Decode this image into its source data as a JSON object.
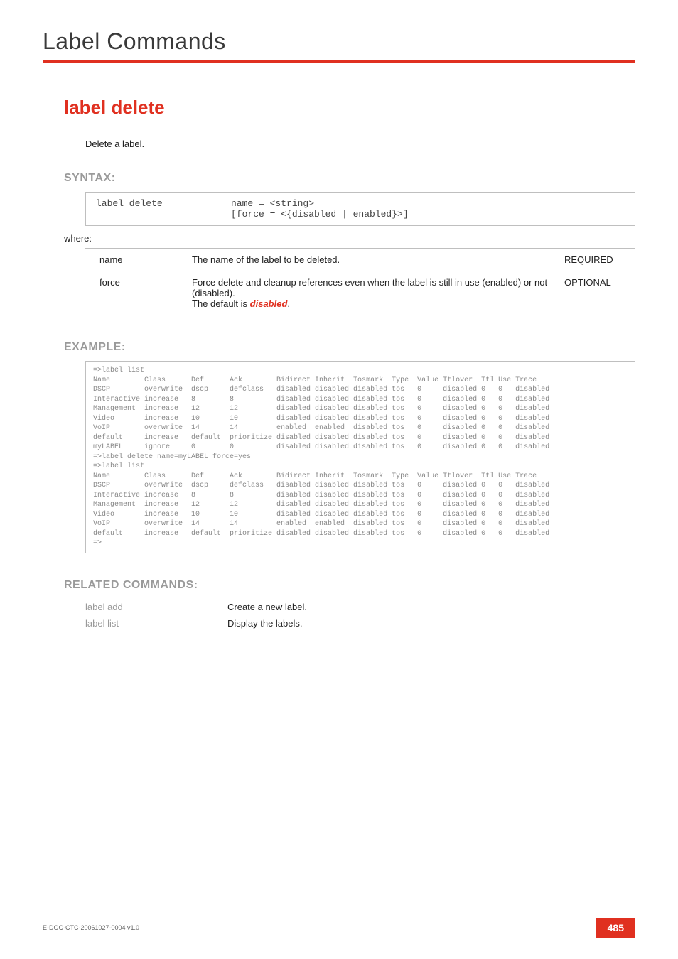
{
  "chapter_title": "Label Commands",
  "command_title": "label delete",
  "description": "Delete a label.",
  "sections": {
    "syntax": "SYNTAX:",
    "example": "EXAMPLE:",
    "related": "RELATED COMMANDS:"
  },
  "syntax": {
    "command": "label delete",
    "args": "name = <string>\n[force = <{disabled | enabled}>]"
  },
  "where": "where:",
  "params": [
    {
      "name": "name",
      "desc": "The name of the label to be deleted.",
      "req": "REQUIRED"
    },
    {
      "name": "force",
      "desc_pre": "Force delete and cleanup references even when the label is still in use (enabled) or not (disabled).\nThe default is ",
      "default": "disabled",
      "desc_post": ".",
      "req": "OPTIONAL"
    }
  ],
  "example_text": "=>label list\nName        Class      Def      Ack        Bidirect Inherit  Tosmark  Type  Value Ttlover  Ttl Use Trace\nDSCP        overwrite  dscp     defclass   disabled disabled disabled tos   0     disabled 0   0   disabled\nInteractive increase   8        8          disabled disabled disabled tos   0     disabled 0   0   disabled\nManagement  increase   12       12         disabled disabled disabled tos   0     disabled 0   0   disabled\nVideo       increase   10       10         disabled disabled disabled tos   0     disabled 0   0   disabled\nVoIP        overwrite  14       14         enabled  enabled  disabled tos   0     disabled 0   0   disabled\ndefault     increase   default  prioritize disabled disabled disabled tos   0     disabled 0   0   disabled\nmyLABEL     ignore     0        0          disabled disabled disabled tos   0     disabled 0   0   disabled\n=>label delete name=myLABEL force=yes\n=>label list\nName        Class      Def      Ack        Bidirect Inherit  Tosmark  Type  Value Ttlover  Ttl Use Trace\nDSCP        overwrite  dscp     defclass   disabled disabled disabled tos   0     disabled 0   0   disabled\nInteractive increase   8        8          disabled disabled disabled tos   0     disabled 0   0   disabled\nManagement  increase   12       12         disabled disabled disabled tos   0     disabled 0   0   disabled\nVideo       increase   10       10         disabled disabled disabled tos   0     disabled 0   0   disabled\nVoIP        overwrite  14       14         enabled  enabled  disabled tos   0     disabled 0   0   disabled\ndefault     increase   default  prioritize disabled disabled disabled tos   0     disabled 0   0   disabled\n=>",
  "related": [
    {
      "cmd": "label add",
      "desc": "Create a new label."
    },
    {
      "cmd": "label list",
      "desc": "Display the labels."
    }
  ],
  "footer": {
    "docid": "E-DOC-CTC-20061027-0004 v1.0",
    "page": "485"
  },
  "colors": {
    "accent": "#e03020",
    "muted": "#9a9a9a"
  }
}
